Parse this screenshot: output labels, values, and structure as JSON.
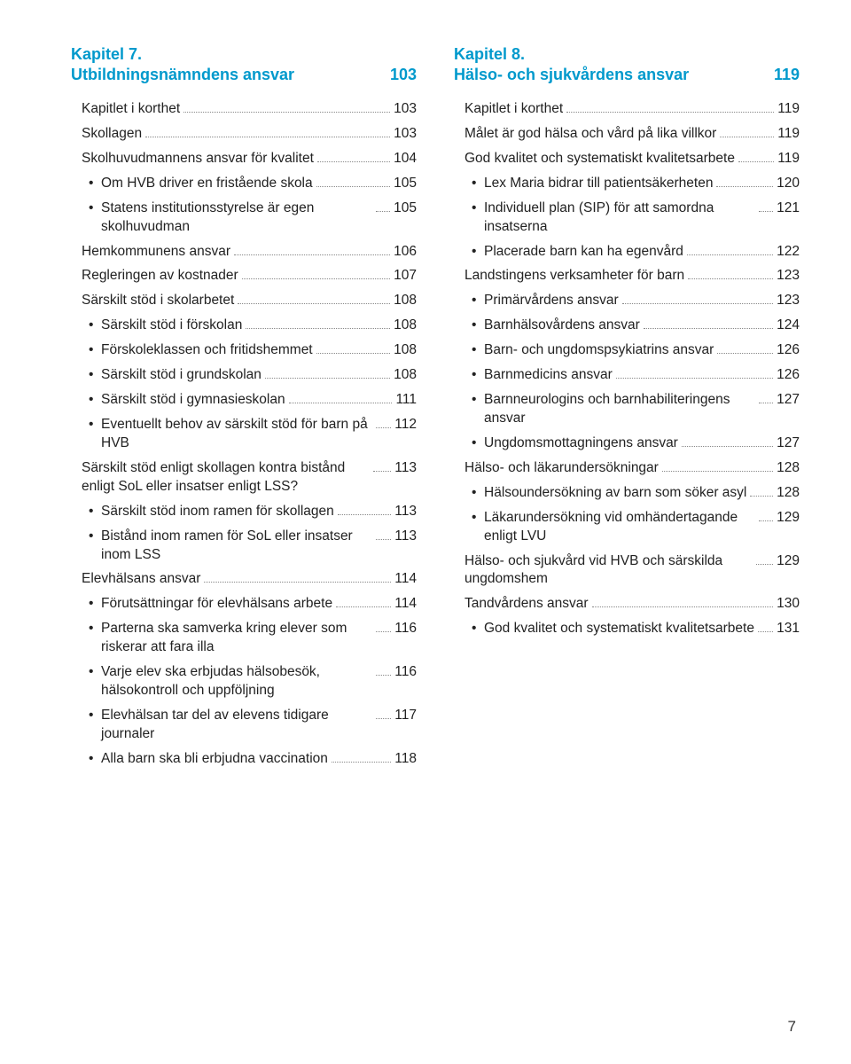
{
  "pageNumber": "7",
  "left": {
    "chapterNum": "Kapitel 7.",
    "chapterTitle": "Utbildningsnämndens ansvar",
    "chapterPage": "103",
    "entries": [
      {
        "level": 1,
        "label": "Kapitlet i korthet",
        "page": "103"
      },
      {
        "level": 1,
        "label": "Skollagen",
        "page": "103"
      },
      {
        "level": 1,
        "label": "Skolhuvudmannens ansvar för kvalitet",
        "page": "104"
      },
      {
        "level": 2,
        "label": "Om HVB driver en fristående skola",
        "page": "105"
      },
      {
        "level": 2,
        "label": "Statens institutionsstyrelse är egen skolhuvudman",
        "page": "105",
        "multi": true
      },
      {
        "level": 1,
        "label": "Hemkommunens ansvar",
        "page": "106"
      },
      {
        "level": 1,
        "label": "Regleringen av kostnader",
        "page": "107"
      },
      {
        "level": 1,
        "label": "Särskilt stöd i skolarbetet",
        "page": "108"
      },
      {
        "level": 2,
        "label": "Särskilt stöd i förskolan",
        "page": "108"
      },
      {
        "level": 2,
        "label": "Förskoleklassen och fritidshemmet",
        "page": "108"
      },
      {
        "level": 2,
        "label": "Särskilt stöd i grundskolan",
        "page": "108"
      },
      {
        "level": 2,
        "label": "Särskilt stöd i gymnasieskolan",
        "page": "111"
      },
      {
        "level": 2,
        "label": "Eventuellt behov av särskilt stöd för barn på HVB",
        "page": "112",
        "multi": true
      },
      {
        "level": 1,
        "label": "Särskilt stöd enligt skollagen kontra bistånd enligt SoL eller insatser enligt LSS?",
        "page": "113",
        "multi": true
      },
      {
        "level": 2,
        "label": "Särskilt stöd inom ramen för skollagen",
        "page": "113"
      },
      {
        "level": 2,
        "label": "Bistånd inom ramen för SoL eller insatser inom LSS",
        "page": "113",
        "multi": true
      },
      {
        "level": 1,
        "label": "Elevhälsans ansvar",
        "page": "114"
      },
      {
        "level": 2,
        "label": "Förutsättningar för elevhälsans arbete",
        "page": "114"
      },
      {
        "level": 2,
        "label": "Parterna ska samverka kring elever som riskerar att fara illa",
        "page": "116",
        "multi": true
      },
      {
        "level": 2,
        "label": "Varje elev ska erbjudas hälsobesök, hälsokontroll och uppföljning",
        "page": "116",
        "multi": true
      },
      {
        "level": 2,
        "label": "Elevhälsan tar del av elevens tidigare journaler",
        "page": "117",
        "multi": true
      },
      {
        "level": 2,
        "label": "Alla barn ska bli erbjudna vaccination",
        "page": "118"
      }
    ]
  },
  "right": {
    "chapterNum": "Kapitel 8.",
    "chapterTitle": "Hälso- och sjukvårdens ansvar",
    "chapterPage": "119",
    "entries": [
      {
        "level": 1,
        "label": "Kapitlet i korthet",
        "page": "119"
      },
      {
        "level": 1,
        "label": "Målet är god hälsa och vård på lika villkor",
        "page": "119"
      },
      {
        "level": 1,
        "label": "God kvalitet och systematiskt kvalitetsarbete",
        "page": "119",
        "multi": true
      },
      {
        "level": 2,
        "label": "Lex Maria bidrar till patientsäkerheten",
        "page": "120"
      },
      {
        "level": 2,
        "label": "Individuell plan (SIP) för att samordna insatserna",
        "page": "121",
        "multi": true
      },
      {
        "level": 2,
        "label": "Placerade barn kan ha egenvård",
        "page": "122"
      },
      {
        "level": 1,
        "label": "Landstingens verksamheter för barn",
        "page": "123"
      },
      {
        "level": 2,
        "label": "Primärvårdens ansvar",
        "page": "123"
      },
      {
        "level": 2,
        "label": "Barnhälsovårdens ansvar",
        "page": "124"
      },
      {
        "level": 2,
        "label": "Barn- och ungdomspsykiatrins ansvar",
        "page": "126"
      },
      {
        "level": 2,
        "label": "Barnmedicins ansvar",
        "page": "126"
      },
      {
        "level": 2,
        "label": "Barnneurologins och barnhabiliteringens ansvar",
        "page": "127",
        "multi": true
      },
      {
        "level": 2,
        "label": "Ungdomsmottagningens ansvar",
        "page": "127"
      },
      {
        "level": 1,
        "label": "Hälso- och läkarundersökningar",
        "page": "128"
      },
      {
        "level": 2,
        "label": "Hälsoundersökning av barn som söker asyl",
        "page": "128",
        "multi": true
      },
      {
        "level": 2,
        "label": "Läkarundersökning vid omhändertagande enligt LVU",
        "page": "129",
        "multi": true
      },
      {
        "level": 1,
        "label": "Hälso- och sjukvård vid HVB och särskilda ungdomshem",
        "page": "129",
        "multi": true
      },
      {
        "level": 1,
        "label": "Tandvårdens ansvar",
        "page": "130"
      },
      {
        "level": 2,
        "label": "God kvalitet och systematiskt kvalitetsarbete",
        "page": "131",
        "multi": true
      }
    ]
  },
  "colors": {
    "heading": "#0099cc",
    "text": "#222222",
    "leader": "#888888",
    "background": "#ffffff"
  },
  "typography": {
    "headingFontSize": 18,
    "bodyFontSize": 15.5,
    "pageNumFontSize": 17
  }
}
